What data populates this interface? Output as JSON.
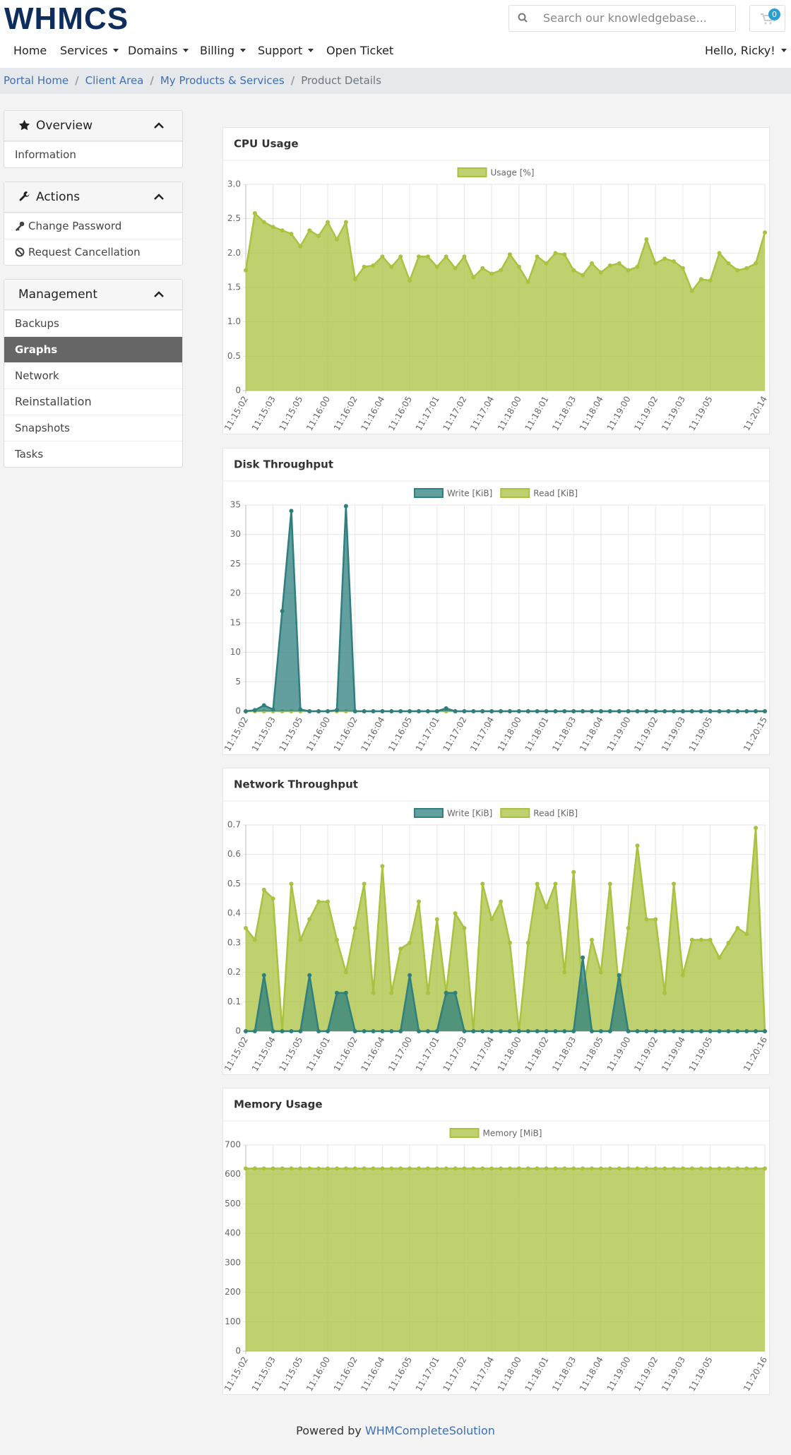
{
  "header": {
    "logo": "WHMCS",
    "search_placeholder": "Search our knowledgebase...",
    "cart_count": "0"
  },
  "nav": {
    "items": [
      "Home",
      "Services",
      "Domains",
      "Billing",
      "Support",
      "Open Ticket"
    ],
    "user": "Hello, Ricky!"
  },
  "breadcrumb": [
    "Portal Home",
    "Client Area",
    "My Products & Services",
    "Product Details"
  ],
  "sidebar": [
    {
      "title": "Overview",
      "items": [
        "Information"
      ]
    },
    {
      "title": "Actions",
      "items": [
        "Change Password",
        "Request Cancellation"
      ]
    },
    {
      "title": "Management",
      "items": [
        "Backups",
        "Graphs",
        "Network",
        "Reinstallation",
        "Snapshots",
        "Tasks"
      ]
    }
  ],
  "chart_data": [
    {
      "type": "area",
      "title": "CPU Usage",
      "categories": [
        "11:15:02",
        null,
        null,
        "11:15:03",
        null,
        null,
        "11:15:05",
        null,
        null,
        "11:16:00",
        null,
        null,
        "11:16:02",
        null,
        null,
        "11:16:04",
        null,
        null,
        "11:16:05",
        null,
        null,
        "11:17:01",
        null,
        null,
        "11:17:02",
        null,
        null,
        "11:17:04",
        null,
        null,
        "11:18:00",
        null,
        null,
        "11:18:01",
        null,
        null,
        "11:18:03",
        null,
        null,
        "11:18:04",
        null,
        null,
        "11:19:00",
        null,
        null,
        "11:19:02",
        null,
        null,
        "11:19:03",
        null,
        null,
        "11:19:05",
        null,
        null,
        null,
        null,
        null,
        "11:20:14"
      ],
      "series": [
        {
          "name": "Usage [%]",
          "color": "#a9c23f",
          "values": [
            1.75,
            2.58,
            2.45,
            2.38,
            2.33,
            2.28,
            2.1,
            2.33,
            2.25,
            2.45,
            2.2,
            2.45,
            1.62,
            1.8,
            1.82,
            1.95,
            1.8,
            1.95,
            1.6,
            1.95,
            1.95,
            1.8,
            1.95,
            1.78,
            1.95,
            1.65,
            1.78,
            1.7,
            1.75,
            1.98,
            1.8,
            1.58,
            1.95,
            1.85,
            2.0,
            1.98,
            1.75,
            1.68,
            1.85,
            1.72,
            1.82,
            1.85,
            1.75,
            1.8,
            2.2,
            1.85,
            1.92,
            1.88,
            1.78,
            1.45,
            1.62,
            1.6,
            2.0,
            1.85,
            1.75,
            1.78,
            1.85,
            2.3
          ]
        }
      ],
      "ylim": [
        0,
        3
      ],
      "yticks": [
        0,
        0.5,
        {
          "value": 1,
          "label": "1.0"
        },
        1.5,
        {
          "value": 2,
          "label": "2.0"
        },
        2.5,
        {
          "value": 3,
          "label": "3.0"
        }
      ],
      "grid": true
    },
    {
      "type": "area",
      "title": "Disk Throughput",
      "categories": [
        "11:15:02",
        null,
        null,
        "11:15:03",
        null,
        null,
        "11:15:05",
        null,
        null,
        "11:16:00",
        null,
        null,
        "11:16:02",
        null,
        null,
        "11:16:04",
        null,
        null,
        "11:16:05",
        null,
        null,
        "11:17:01",
        null,
        null,
        "11:17:02",
        null,
        null,
        "11:17:04",
        null,
        null,
        "11:18:00",
        null,
        null,
        "11:18:01",
        null,
        null,
        "11:18:03",
        null,
        null,
        "11:18:04",
        null,
        null,
        "11:19:00",
        null,
        null,
        "11:19:02",
        null,
        null,
        "11:19:03",
        null,
        null,
        "11:19:05",
        null,
        null,
        null,
        null,
        null,
        "11:20:15"
      ],
      "series": [
        {
          "name": "Write [KiB]",
          "color": "#2e7f7e",
          "values": [
            0,
            0.2,
            1,
            0.3,
            17,
            34,
            0.3,
            0,
            0,
            0,
            0.2,
            34.8,
            0,
            0,
            0,
            0,
            0,
            0,
            0,
            0,
            0,
            0,
            0.5,
            0,
            0,
            0,
            0,
            0,
            0,
            0,
            0,
            0,
            0,
            0,
            0,
            0,
            0,
            0,
            0,
            0,
            0,
            0,
            0,
            0,
            0,
            0,
            0,
            0,
            0,
            0,
            0,
            0,
            0,
            0,
            0,
            0,
            0,
            0
          ]
        },
        {
          "name": "Read [KiB]",
          "color": "#a9c23f",
          "values": [
            0,
            0,
            0,
            0,
            0,
            0,
            0,
            0,
            0,
            0,
            0,
            0,
            0,
            0,
            0,
            0,
            0,
            0,
            0,
            0,
            0,
            0,
            0,
            0,
            0,
            0,
            0,
            0,
            0,
            0,
            0,
            0,
            0,
            0,
            0,
            0,
            0,
            0,
            0,
            0,
            0,
            0,
            0,
            0,
            0,
            0,
            0,
            0,
            0,
            0,
            0,
            0,
            0,
            0,
            0,
            0,
            0,
            0
          ]
        }
      ],
      "ylim": [
        0,
        35
      ],
      "yticks": [
        0,
        5,
        10,
        15,
        20,
        25,
        30,
        35
      ],
      "grid": true
    },
    {
      "type": "area",
      "title": "Network Throughput",
      "categories": [
        "11:15:02",
        null,
        null,
        "11:15:04",
        null,
        null,
        "11:15:05",
        null,
        null,
        "11:16:01",
        null,
        null,
        "11:16:02",
        null,
        null,
        "11:16:04",
        null,
        null,
        "11:17:00",
        null,
        null,
        "11:17:01",
        null,
        null,
        "11:17:03",
        null,
        null,
        "11:17:04",
        null,
        null,
        "11:18:00",
        null,
        null,
        "11:18:02",
        null,
        null,
        "11:18:03",
        null,
        null,
        "11:18:05",
        null,
        null,
        "11:19:00",
        null,
        null,
        "11:19:02",
        null,
        null,
        "11:19:04",
        null,
        null,
        "11:19:05",
        null,
        null,
        null,
        null,
        null,
        "11:20:16"
      ],
      "series": [
        {
          "name": "Write [KiB]",
          "color": "#2e7f7e",
          "values": [
            0,
            0,
            0.19,
            0,
            0,
            0,
            0,
            0.19,
            0,
            0,
            0.13,
            0.13,
            0,
            0,
            0,
            0,
            0,
            0,
            0.19,
            0,
            0,
            0,
            0.13,
            0.13,
            0,
            0,
            0,
            0,
            0,
            0,
            0,
            0,
            0,
            0,
            0,
            0,
            0,
            0.25,
            0,
            0,
            0,
            0.19,
            0,
            0,
            0,
            0,
            0,
            0,
            0,
            0,
            0,
            0,
            0,
            0,
            0,
            0,
            0,
            0
          ]
        },
        {
          "name": "Read [KiB]",
          "color": "#a9c23f",
          "values": [
            0.35,
            0.31,
            0.48,
            0.45,
            0,
            0.5,
            0.31,
            0.38,
            0.44,
            0.44,
            0.31,
            0.2,
            0.35,
            0.5,
            0.13,
            0.56,
            0.13,
            0.28,
            0.3,
            0.44,
            0.13,
            0.38,
            0.13,
            0.4,
            0.35,
            0,
            0.5,
            0.38,
            0.44,
            0.3,
            0,
            0.3,
            0.5,
            0.42,
            0.5,
            0.2,
            0.54,
            0.13,
            0.31,
            0.2,
            0.5,
            0.13,
            0.35,
            0.63,
            0.38,
            0.38,
            0.13,
            0.5,
            0.19,
            0.31,
            0.31,
            0.31,
            0.25,
            0.3,
            0.35,
            0.33,
            0.69,
            0
          ]
        }
      ],
      "ylim": [
        0,
        0.7
      ],
      "yticks": [
        0,
        0.1,
        0.2,
        0.3,
        0.4,
        0.5,
        0.6,
        0.7
      ],
      "grid": true
    },
    {
      "type": "area",
      "title": "Memory Usage",
      "categories": [
        "11:15:02",
        null,
        null,
        "11:15:03",
        null,
        null,
        "11:15:05",
        null,
        null,
        "11:16:00",
        null,
        null,
        "11:16:02",
        null,
        null,
        "11:16:04",
        null,
        null,
        "11:16:05",
        null,
        null,
        "11:17:01",
        null,
        null,
        "11:17:02",
        null,
        null,
        "11:17:04",
        null,
        null,
        "11:18:00",
        null,
        null,
        "11:18:01",
        null,
        null,
        "11:18:03",
        null,
        null,
        "11:18:04",
        null,
        null,
        "11:19:00",
        null,
        null,
        "11:19:02",
        null,
        null,
        "11:19:03",
        null,
        null,
        "11:19:05",
        null,
        null,
        null,
        null,
        null,
        "11:20:16"
      ],
      "series": [
        {
          "name": "Memory [MiB]",
          "color": "#a9c23f",
          "values": [
            620,
            620,
            620,
            620,
            620,
            620,
            620,
            620,
            620,
            620,
            620,
            620,
            620,
            620,
            620,
            620,
            620,
            620,
            620,
            620,
            620,
            620,
            620,
            620,
            620,
            620,
            620,
            620,
            620,
            620,
            620,
            620,
            620,
            620,
            620,
            620,
            620,
            620,
            620,
            620,
            620,
            620,
            620,
            620,
            620,
            620,
            620,
            620,
            620,
            620,
            620,
            620,
            620,
            620,
            620,
            620,
            620,
            620
          ]
        }
      ],
      "ylim": [
        0,
        700
      ],
      "yticks": [
        0,
        100,
        200,
        300,
        400,
        500,
        600,
        700
      ],
      "grid": true
    }
  ],
  "footer": {
    "text": "Powered by",
    "link": "WHMCompleteSolution"
  }
}
